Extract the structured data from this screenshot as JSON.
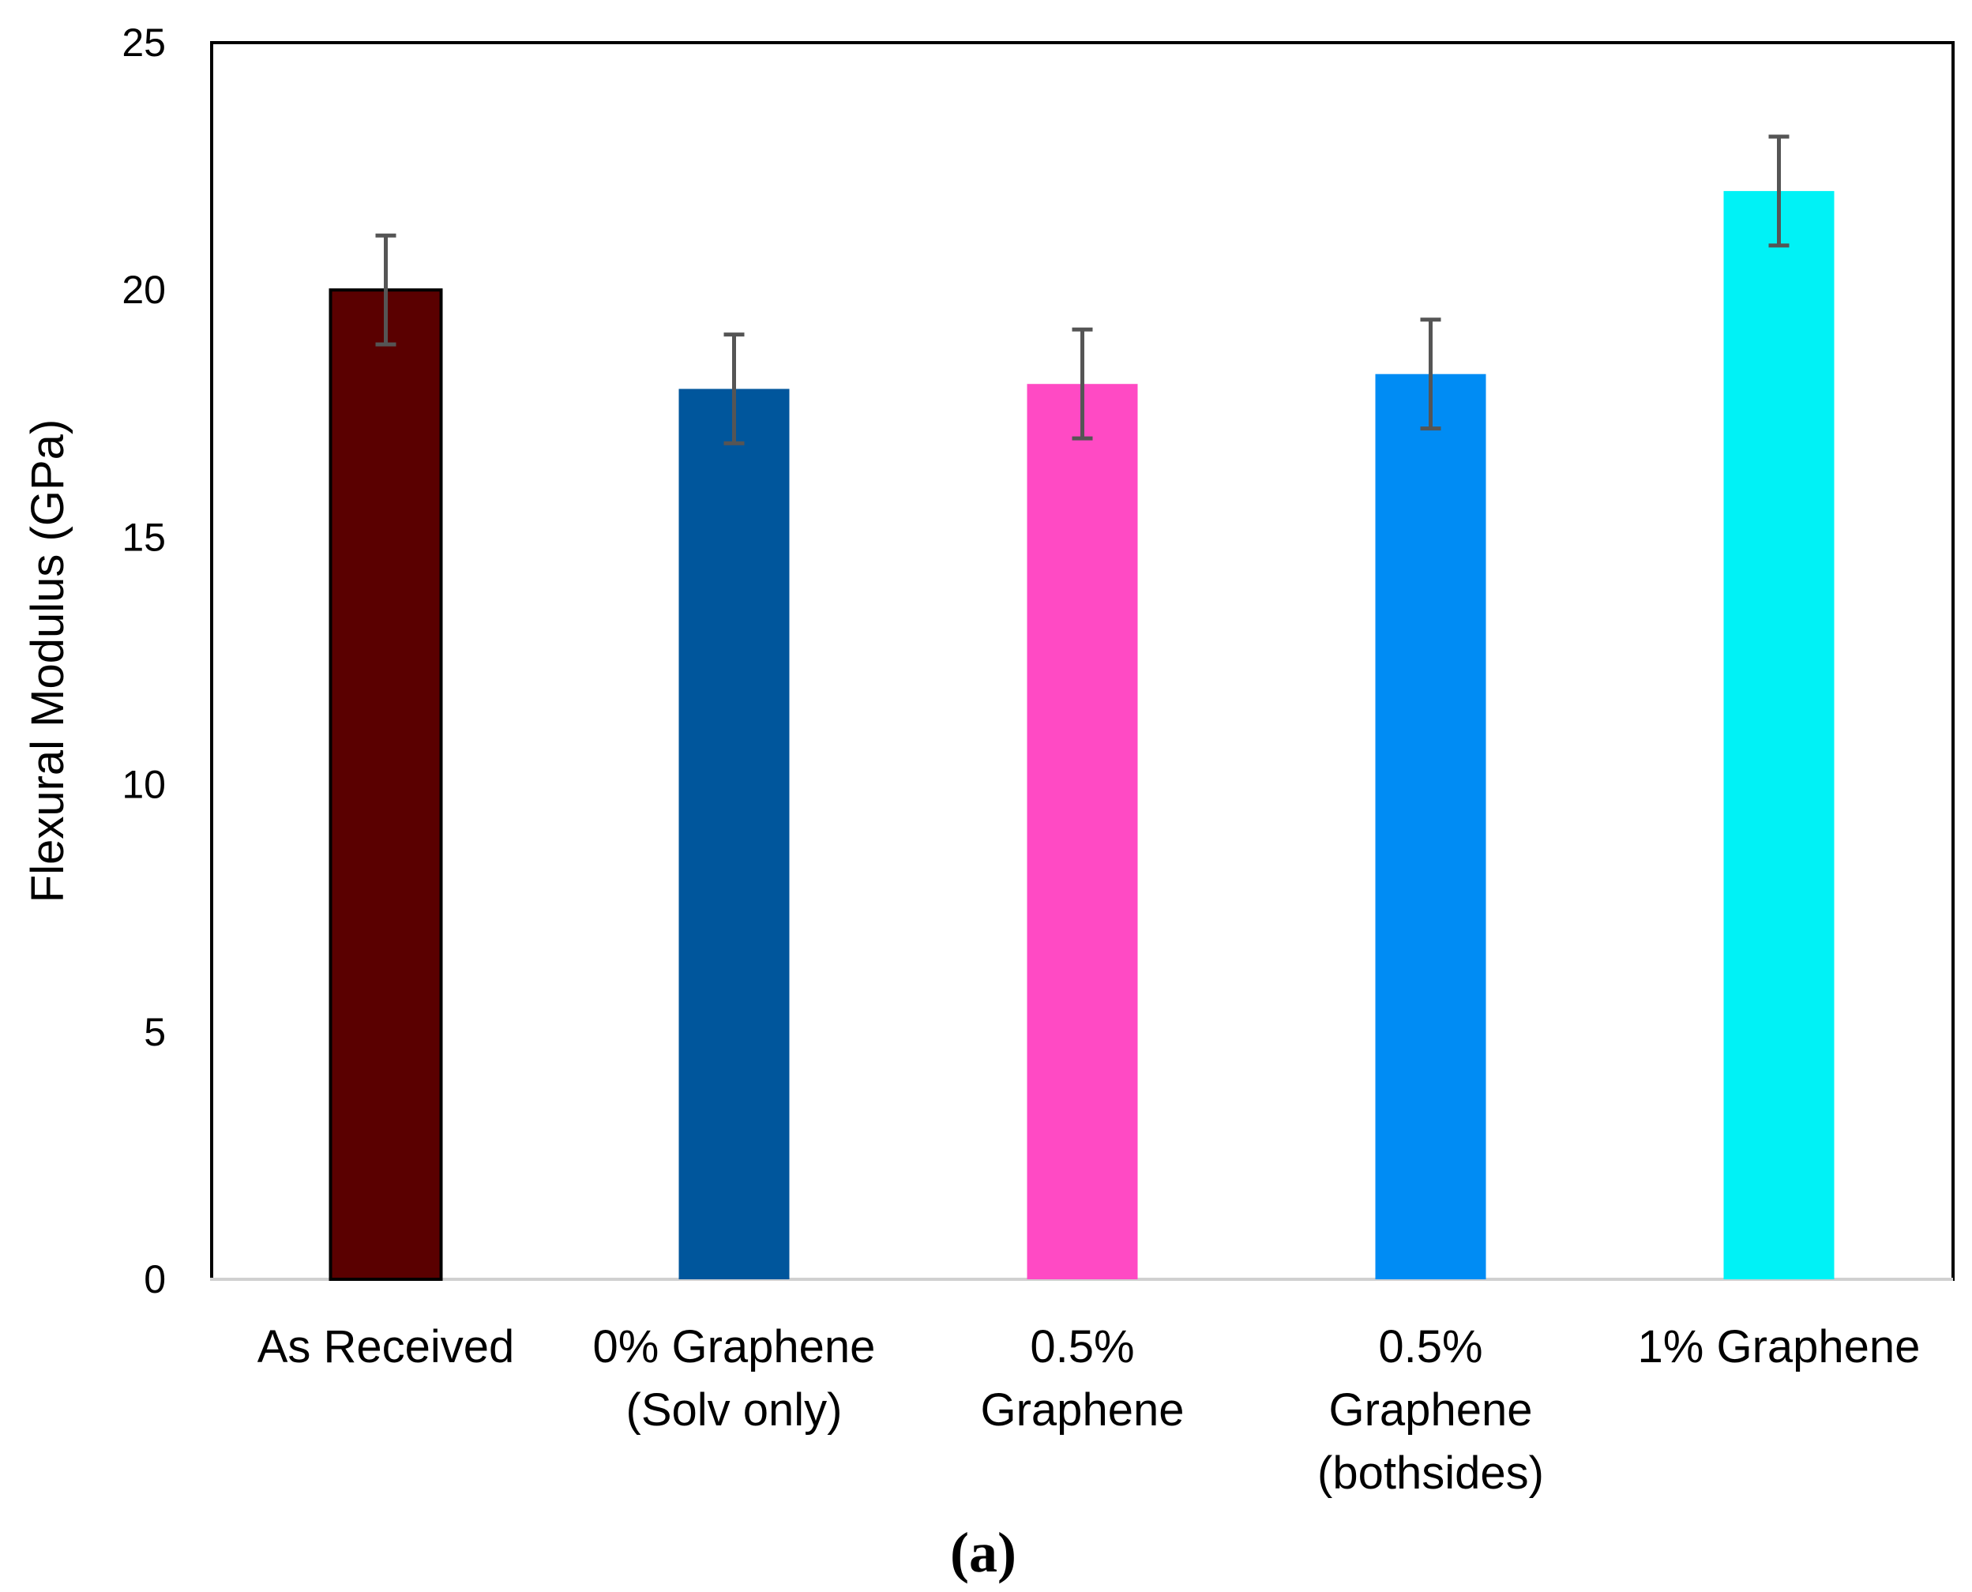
{
  "chart_data": {
    "type": "bar",
    "title": "",
    "xlabel": "",
    "ylabel": "Flexural Modulus  (GPa)",
    "ylim": [
      0,
      25
    ],
    "yticks": [
      0,
      5,
      10,
      15,
      20,
      25
    ],
    "grid": false,
    "categories": [
      [
        "As Received"
      ],
      [
        "0% Graphene",
        "(Solv only)"
      ],
      [
        "0.5%",
        "Graphene"
      ],
      [
        "0.5%",
        "Graphene",
        "(bothsides)"
      ],
      [
        "1% Graphene"
      ]
    ],
    "values": [
      20.0,
      18.0,
      18.1,
      18.3,
      22.0
    ],
    "errors": [
      1.1,
      1.1,
      1.1,
      1.1,
      1.1
    ],
    "colors": [
      "#5a0000",
      "#00569c",
      "#ff4ac4",
      "#008cf4",
      "#00f2f6"
    ],
    "panel_label": "(a)"
  }
}
